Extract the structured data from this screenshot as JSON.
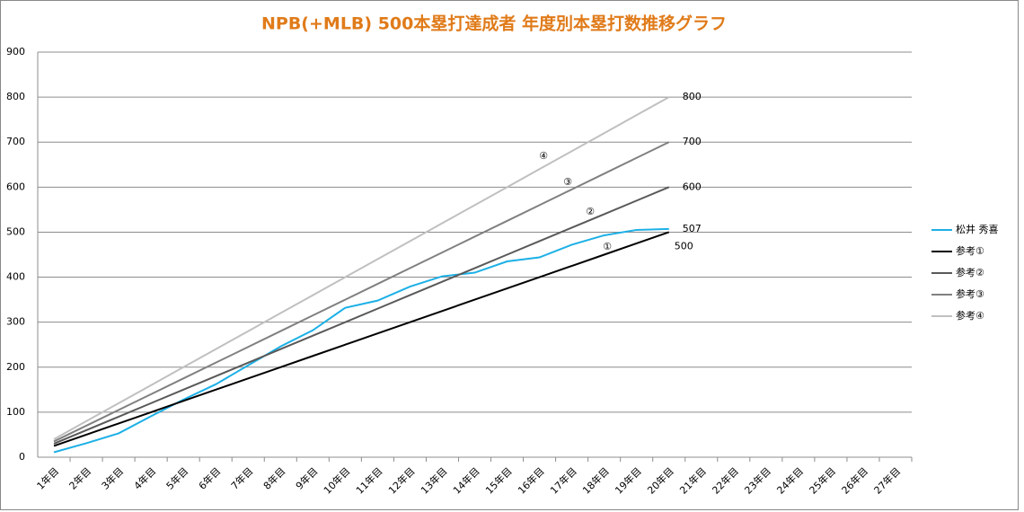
{
  "chart_data": {
    "type": "line",
    "title": "NPB(+MLB) 500本塁打達成者 年度別本塁打数推移グラフ",
    "categories": [
      "1年目",
      "2年目",
      "3年目",
      "4年目",
      "5年目",
      "6年目",
      "7年目",
      "8年目",
      "9年目",
      "10年目",
      "11年目",
      "12年目",
      "13年目",
      "14年目",
      "15年目",
      "16年目",
      "17年目",
      "18年目",
      "19年目",
      "20年目",
      "21年目",
      "22年目",
      "23年目",
      "24年目",
      "25年目",
      "26年目",
      "27年目"
    ],
    "series": [
      {
        "name": "松井 秀喜",
        "color": "#1cb0e6",
        "values": [
          11,
          31,
          53,
          91,
          128,
          162,
          204,
          246,
          282,
          332,
          348,
          379,
          402,
          410,
          435,
          444,
          472,
          493,
          505,
          507,
          null,
          null,
          null,
          null,
          null,
          null,
          null
        ]
      },
      {
        "name": "参考①",
        "color": "#000000",
        "values": [
          25,
          50,
          75,
          100,
          125,
          150,
          175,
          200,
          225,
          250,
          275,
          300,
          325,
          350,
          375,
          400,
          425,
          450,
          475,
          500,
          null,
          null,
          null,
          null,
          null,
          null,
          null
        ]
      },
      {
        "name": "参考②",
        "color": "#595959",
        "values": [
          30,
          60,
          90,
          120,
          150,
          180,
          210,
          240,
          270,
          300,
          330,
          360,
          390,
          420,
          450,
          480,
          510,
          540,
          570,
          600,
          null,
          null,
          null,
          null,
          null,
          null,
          null
        ]
      },
      {
        "name": "参考③",
        "color": "#808080",
        "values": [
          35,
          70,
          105,
          140,
          175,
          210,
          245,
          280,
          315,
          350,
          385,
          420,
          455,
          490,
          525,
          560,
          595,
          630,
          665,
          700,
          null,
          null,
          null,
          null,
          null,
          null,
          null
        ]
      },
      {
        "name": "参考④",
        "color": "#c0c0c0",
        "values": [
          40,
          80,
          120,
          160,
          200,
          240,
          280,
          320,
          360,
          400,
          440,
          480,
          520,
          560,
          600,
          640,
          680,
          720,
          760,
          800,
          null,
          null,
          null,
          null,
          null,
          null,
          null
        ]
      }
    ],
    "annotations": [
      "①",
      "②",
      "③",
      "④"
    ],
    "ylim": [
      0,
      900
    ],
    "yticks": [
      0,
      100,
      200,
      300,
      400,
      500,
      600,
      700,
      800,
      900
    ],
    "grid": true,
    "legend": "right"
  }
}
